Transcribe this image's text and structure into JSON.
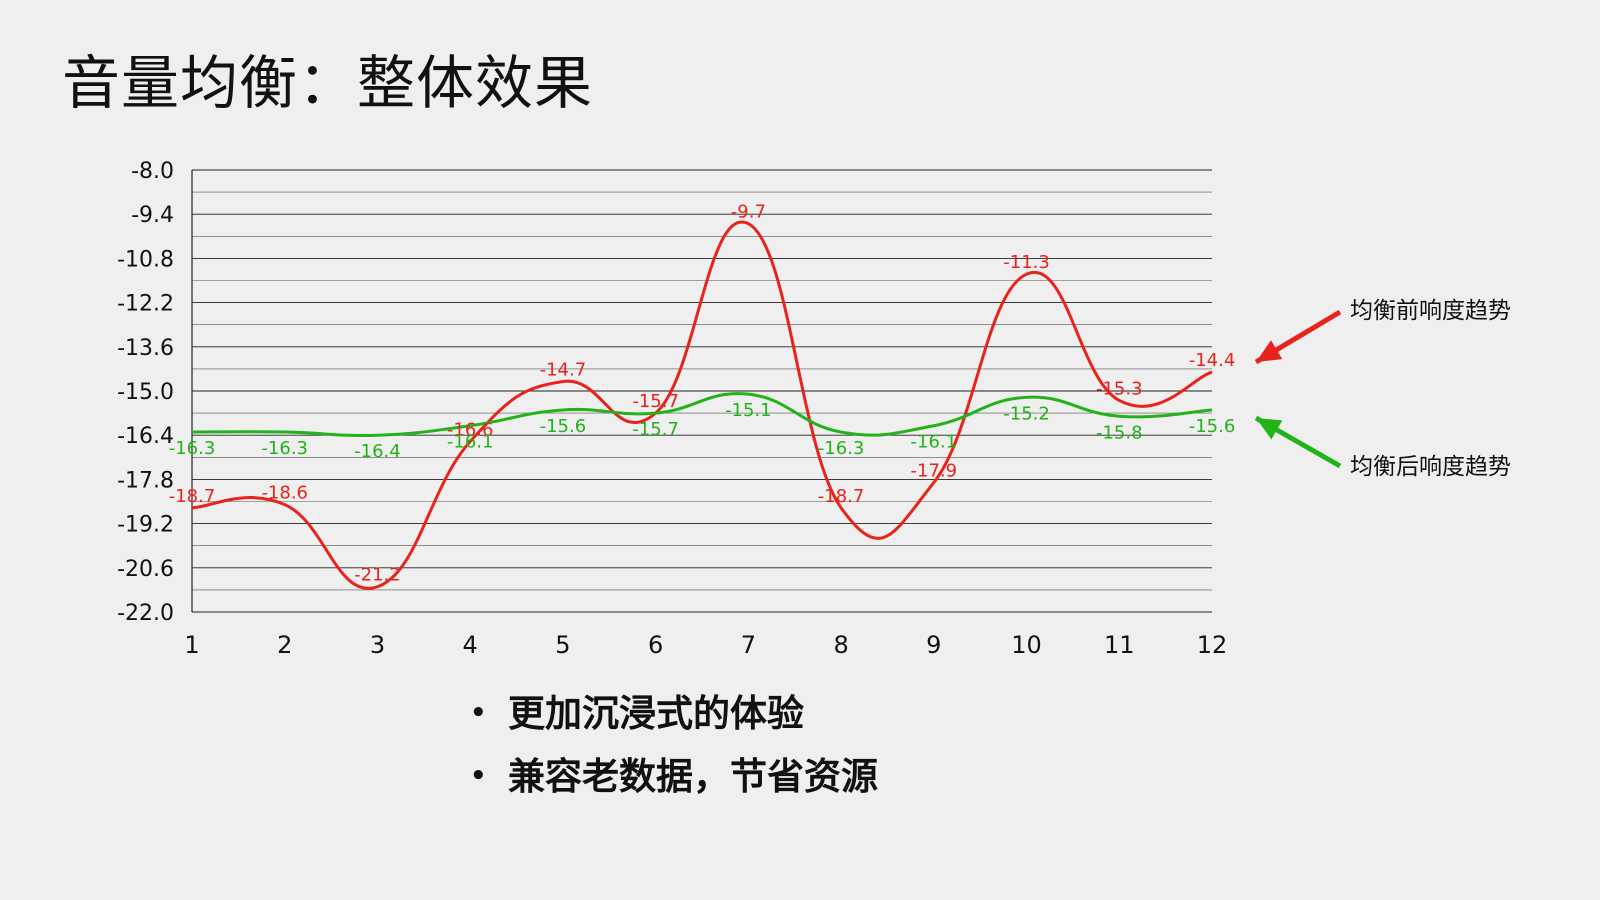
{
  "slide": {
    "title": "音量均衡：整体效果",
    "bullets": [
      "更加沉浸式的体验",
      "兼容老数据，节省资源"
    ],
    "bullet_glyph": "•"
  },
  "chart_data": {
    "type": "line",
    "title": "",
    "xlabel": "",
    "ylabel": "",
    "x": [
      1,
      2,
      3,
      4,
      5,
      6,
      7,
      8,
      9,
      10,
      11,
      12
    ],
    "ylim": [
      -22.0,
      -8.0
    ],
    "yticks": [
      "-8.0",
      "-9.4",
      "-10.8",
      "-12.2",
      "-13.6",
      "-15.0",
      "-16.4",
      "-17.8",
      "-19.2",
      "-20.6",
      "-22.0"
    ],
    "minor_gridlines": true,
    "grid": true,
    "smooth": true,
    "series": [
      {
        "name": "均衡前响度趋势",
        "color": "#e8231c",
        "values": [
          -18.7,
          -18.6,
          -21.2,
          -16.6,
          -14.7,
          -15.7,
          -9.7,
          -18.7,
          -17.9,
          -11.3,
          -15.3,
          -14.4
        ],
        "labels": [
          "-18.7",
          "-18.6",
          "-21.2",
          "-16.6",
          "-14.7",
          "-15.7",
          "-9.7",
          "-18.7",
          "-17.9",
          "-11.3",
          "-15.3",
          "-14.4"
        ]
      },
      {
        "name": "均衡后响度趋势",
        "color": "#22b21a",
        "values": [
          -16.3,
          -16.3,
          -16.4,
          -16.1,
          -15.6,
          -15.7,
          -15.1,
          -16.3,
          -16.1,
          -15.2,
          -15.8,
          -15.6
        ],
        "labels": [
          "-16.3",
          "-16.3",
          "-16.4",
          "-16.1",
          "-15.6",
          "-15.7",
          "-15.1",
          "-16.3",
          "-16.1",
          "-15.2",
          "-15.8",
          "-15.6"
        ]
      }
    ],
    "legend": "right, with arrows"
  }
}
